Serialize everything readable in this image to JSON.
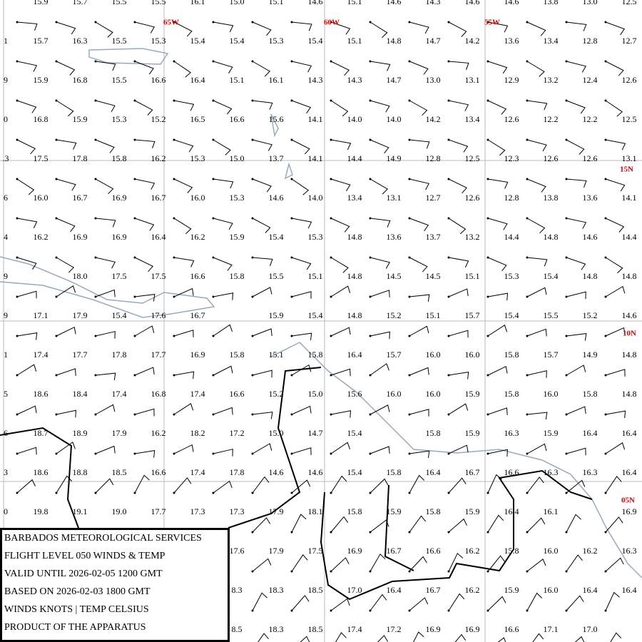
{
  "map": {
    "lon_labels": [
      "65W",
      "60W",
      "55W"
    ],
    "lat_labels": [
      "15N",
      "10N",
      "05N"
    ],
    "rows": [
      {
        "temps": [
          "15.9",
          "15.7",
          "15.5",
          "15.5",
          "16.1",
          "15.0",
          "15.1",
          "14.6",
          "15.1",
          "14.6",
          "14.3",
          "14.6",
          "14.6",
          "13.8",
          "13.0",
          "12.5"
        ]
      },
      {
        "edge": "1",
        "temps": [
          "15.7",
          "16.3",
          "15.5",
          "15.3",
          "15.4",
          "15.4",
          "15.3",
          "15.4",
          "15.1",
          "14.8",
          "14.7",
          "14.2",
          "13.6",
          "13.4",
          "12.8",
          "12.7"
        ]
      },
      {
        "edge": "9",
        "temps": [
          "15.9",
          "16.8",
          "15.5",
          "16.6",
          "16.4",
          "15.1",
          "16.1",
          "14.3",
          "14.3",
          "14.7",
          "13.0",
          "13.1",
          "12.9",
          "13.2",
          "12.4",
          "12.6"
        ]
      },
      {
        "edge": "0",
        "temps": [
          "16.8",
          "15.9",
          "15.3",
          "15.2",
          "16.5",
          "16.6",
          "15.6",
          "14.1",
          "14.0",
          "14.0",
          "14.2",
          "13.4",
          "12.6",
          "12.2",
          "12.2",
          "12.5"
        ]
      },
      {
        "edge": ".3",
        "temps": [
          "17.5",
          "17.8",
          "15.8",
          "16.2",
          "15.3",
          "15.0",
          "13.7",
          "14.1",
          "14.4",
          "14.9",
          "12.8",
          "12.5",
          "12.3",
          "12.6",
          "12.6",
          "13.1"
        ]
      },
      {
        "edge": "6",
        "temps": [
          "16.0",
          "16.7",
          "16.9",
          "16.7",
          "16.0",
          "15.3",
          "14.6",
          "14.0",
          "13.4",
          "13.1",
          "12.7",
          "12.6",
          "12.8",
          "13.8",
          "13.6",
          "14.1"
        ]
      },
      {
        "edge": "4",
        "temps": [
          "16.2",
          "16.9",
          "16.9",
          "16.4",
          "16.2",
          "15.9",
          "15.4",
          "15.3",
          "14.8",
          "13.6",
          "13.7",
          "13.2",
          "14.4",
          "14.8",
          "14.6",
          "14.4"
        ]
      },
      {
        "edge": "9",
        "temps": [
          null,
          "18.0",
          "17.5",
          "17.5",
          "16.6",
          "15.8",
          "15.5",
          "15.1",
          "14.8",
          "14.5",
          "14.5",
          "15.1",
          "15.3",
          "15.4",
          "14.8",
          "14.8"
        ]
      },
      {
        "edge": "9",
        "temps": [
          "17.1",
          "17.9",
          "15.4",
          "17.6",
          "16.7",
          null,
          "15.9",
          "15.4",
          "14.8",
          "15.2",
          "15.1",
          "15.7",
          "15.4",
          "15.5",
          "15.2",
          "14.6"
        ]
      },
      {
        "edge": "1",
        "temps": [
          "17.4",
          "17.7",
          "17.8",
          "17.7",
          "16.9",
          "15.8",
          "15.1",
          "15.8",
          "16.4",
          "15.7",
          "16.0",
          "16.0",
          "15.8",
          "15.7",
          "14.9",
          "14.8"
        ]
      },
      {
        "edge": "5",
        "temps": [
          "18.6",
          "18.4",
          "17.4",
          "16.8",
          "17.4",
          "16.6",
          "15.2",
          "15.0",
          "15.6",
          "16.0",
          "16.0",
          "15.9",
          "15.8",
          "16.0",
          "15.8",
          "14.8"
        ]
      },
      {
        "edge": "6",
        "temps": [
          "18.7",
          "18.9",
          "17.9",
          "16.2",
          "18.2",
          "17.2",
          "15.0",
          "14.7",
          "15.4",
          null,
          "15.8",
          "15.9",
          "16.3",
          "15.9",
          "16.4",
          "16.4"
        ]
      },
      {
        "edge": "3",
        "temps": [
          "18.6",
          "18.8",
          "18.5",
          "16.6",
          "17.4",
          "17.8",
          "14.6",
          "14.6",
          "15.4",
          "15.8",
          "16.4",
          "16.7",
          "16.6",
          "16.3",
          "16.3",
          "16.4"
        ]
      },
      {
        "edge": "0",
        "temps": [
          "19.8",
          "19.1",
          "19.0",
          "17.7",
          "17.3",
          "17.3",
          "17.9",
          "18.1",
          "15.8",
          "15.9",
          "15.8",
          "15.9",
          "16.4",
          "16.1",
          null,
          "16.9"
        ]
      },
      {
        "temps": [
          null,
          null,
          null,
          null,
          null,
          "17.6",
          "17.9",
          "17.5",
          "16.9",
          "16.7",
          "16.6",
          "16.2",
          "15.8",
          "16.0",
          "16.2",
          "16.3"
        ]
      },
      {
        "temps": [
          null,
          null,
          null,
          null,
          null,
          "8.3",
          "18.3",
          "18.5",
          "17.0",
          "16.4",
          "16.7",
          "16.2",
          "15.9",
          "16.0",
          "16.4",
          "16.4"
        ]
      },
      {
        "temps": [
          null,
          null,
          null,
          null,
          null,
          "8.5",
          "18.3",
          "18.5",
          "17.4",
          "17.2",
          "16.9",
          "16.9",
          "16.6",
          "17.1",
          "17.0",
          null
        ]
      }
    ],
    "info": [
      "BARBADOS METEOROLOGICAL SERVICES",
      "FLIGHT LEVEL 050 WINDS & TEMP",
      "VALID UNTIL 2026-02-05 1200 GMT",
      "BASED ON 2026-02-03 1800 GMT",
      "WINDS KNOTS | TEMP CELSIUS",
      "PRODUCT OF THE APPARATUS"
    ]
  }
}
